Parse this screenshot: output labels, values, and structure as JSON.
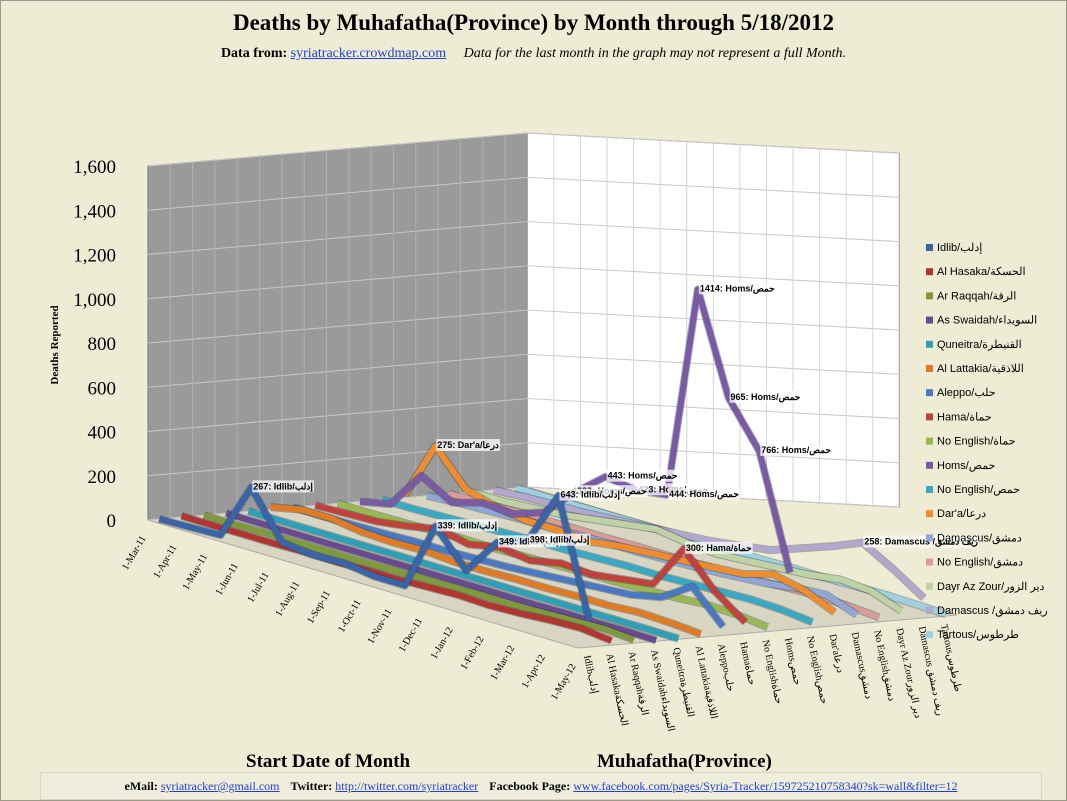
{
  "header": {
    "data_from_label": "Data from:",
    "source_link": "syriatracker.crowdmap.com",
    "note": "Data for the last month  in the graph may not represent  a full Month."
  },
  "footer": {
    "email_label": "eMail:",
    "email": "syriatracker@gmail.com",
    "twitter_label": "Twitter:",
    "twitter": "http://twitter.com/syriatracker",
    "facebook_label": "Facebook  Page:",
    "facebook": "www.facebook.com/pages/Syria-Tracker/159725210758340?sk=wall&filter=12"
  },
  "chart_data": {
    "type": "line",
    "title": "Deaths by Muhafatha(Province) by Month through 5/18/2012",
    "xlabel": "Start Date of Month",
    "ylabel": "Deaths Reported",
    "zlabel": "Muhafatha(Province)",
    "ylim": [
      0,
      1600
    ],
    "y_ticks": [
      "0",
      "200",
      "400",
      "600",
      "800",
      "1,000",
      "1,200",
      "1,400",
      "1,600"
    ],
    "grid": true,
    "legend_position": "right",
    "categories": [
      "1-Mar-11",
      "1-Apr-11",
      "1-May-11",
      "1-Jun-11",
      "1-Jul-11",
      "1-Aug-11",
      "1-Sep-11",
      "1-Oct-11",
      "1-Nov-11",
      "1-Dec-11",
      "1-Jan-12",
      "1-Feb-12",
      "1-Mar-12",
      "1-Apr-12",
      "1-May-12"
    ],
    "depth_labels": [
      "Idlibإدلب",
      "Al Hasakaالحسكة",
      "Ar Raqqahالرقة",
      "As Swaidahالسويداء",
      "Quneitraالقنيطرة",
      "Al Lattakiaاللاذقية",
      "Aleppoحلب",
      "Hamaحماة",
      "No Englishحماة",
      "Homsحمص",
      "No Englishحمص",
      "Dar'aدرعا",
      "Damascusدمشق",
      "No Englishدمشق",
      "Dayr Az Zourدير الزور",
      "Damascus ريف دمشق",
      "Tartousطرطوس"
    ],
    "series": [
      {
        "name": "Idlib/إدلب",
        "color": "#3a64a8",
        "values": [
          0,
          5,
          10,
          267,
          60,
          45,
          50,
          30,
          30,
          339,
          180,
          349,
          398,
          643,
          120
        ]
      },
      {
        "name": "Al Hasaka/الحسكة",
        "color": "#b3352f",
        "values": [
          5,
          5,
          5,
          5,
          8,
          6,
          10,
          10,
          15,
          20,
          15,
          20,
          30,
          35,
          20
        ]
      },
      {
        "name": "Ar Raqqah/الرقة",
        "color": "#7f9a3c",
        "values": [
          0,
          0,
          2,
          2,
          3,
          3,
          5,
          8,
          10,
          12,
          10,
          15,
          20,
          25,
          15
        ]
      },
      {
        "name": "As Swaidah/السويداء",
        "color": "#684b8f",
        "values": [
          0,
          0,
          0,
          0,
          1,
          1,
          2,
          2,
          3,
          3,
          3,
          5,
          5,
          6,
          4
        ]
      },
      {
        "name": "Quneitra/القنيطرة",
        "color": "#2f9fb8",
        "values": [
          0,
          0,
          0,
          0,
          0,
          1,
          1,
          1,
          2,
          2,
          3,
          3,
          4,
          4,
          3
        ]
      },
      {
        "name": "Al Lattakia/اللاذقية",
        "color": "#e07a25",
        "values": [
          10,
          40,
          40,
          20,
          15,
          20,
          10,
          10,
          15,
          15,
          20,
          20,
          30,
          25,
          15
        ]
      },
      {
        "name": "Aleppo/حلب",
        "color": "#4a78c3",
        "values": [
          0,
          0,
          2,
          5,
          10,
          10,
          15,
          20,
          30,
          40,
          50,
          60,
          90,
          180,
          40
        ]
      },
      {
        "name": "Hama/حماة",
        "color": "#c1423d",
        "values": [
          0,
          5,
          10,
          30,
          60,
          30,
          60,
          40,
          70,
          60,
          80,
          100,
          300,
          150,
          50
        ]
      },
      {
        "name": "No English/حماة",
        "color": "#9ab851",
        "values": [
          0,
          0,
          2,
          5,
          10,
          8,
          12,
          15,
          20,
          20,
          25,
          30,
          40,
          35,
          20
        ]
      },
      {
        "name": "Homs/حمص",
        "color": "#7a5aa4",
        "values": [
          0,
          30,
          200,
          120,
          160,
          150,
          200,
          332,
          443,
          423,
          444,
          1414,
          965,
          766,
          258
        ]
      },
      {
        "name": "No English/حمص",
        "color": "#37a9c4",
        "values": [
          0,
          0,
          5,
          10,
          15,
          20,
          20,
          25,
          30,
          30,
          35,
          40,
          45,
          40,
          25
        ]
      },
      {
        "name": "Dar'a/درعا",
        "color": "#ef8d2e",
        "values": [
          10,
          275,
          120,
          80,
          60,
          60,
          50,
          70,
          80,
          90,
          100,
          110,
          150,
          120,
          60
        ]
      },
      {
        "name": "Damascus/دمشق",
        "color": "#8ea7d6",
        "values": [
          0,
          10,
          15,
          20,
          25,
          25,
          30,
          30,
          35,
          40,
          50,
          60,
          80,
          90,
          40
        ]
      },
      {
        "name": "No English/دمشق",
        "color": "#d89b98",
        "values": [
          0,
          5,
          8,
          10,
          12,
          12,
          15,
          15,
          18,
          20,
          25,
          30,
          35,
          30,
          20
        ]
      },
      {
        "name": "Dayr Az Zour/دير الزور",
        "color": "#bfd2a3",
        "values": [
          0,
          0,
          10,
          20,
          40,
          60,
          80,
          60,
          50,
          60,
          70,
          80,
          100,
          90,
          40
        ]
      },
      {
        "name": "Damascus /ريف دمشق",
        "color": "#b2a7cc",
        "values": [
          0,
          10,
          15,
          20,
          30,
          40,
          50,
          60,
          80,
          100,
          150,
          200,
          258,
          180,
          90
        ]
      },
      {
        "name": "Tartous/طرطوس",
        "color": "#9fd0df",
        "values": [
          0,
          0,
          2,
          3,
          5,
          5,
          5,
          8,
          8,
          10,
          10,
          12,
          15,
          12,
          8
        ]
      }
    ],
    "annotations": [
      {
        "series": 9,
        "index": 11,
        "text": "1414: Homs/حمص"
      },
      {
        "series": 9,
        "index": 12,
        "text": "965: Homs/حمص"
      },
      {
        "series": 9,
        "index": 13,
        "text": "766: Homs/حمص"
      },
      {
        "series": 9,
        "index": 8,
        "text": "443: Homs/حمص"
      },
      {
        "series": 9,
        "index": 9,
        "text": "423: Homs/حمص"
      },
      {
        "series": 9,
        "index": 10,
        "text": "444: Homs/حمص"
      },
      {
        "series": 9,
        "index": 7,
        "text": "332: Homs/حمص"
      },
      {
        "series": 11,
        "index": 1,
        "text": "275: Dar'a/درعا"
      },
      {
        "series": 15,
        "index": 12,
        "text": "258: Damascus /ريف دمشق"
      },
      {
        "series": 7,
        "index": 12,
        "text": "300: Hama/حماة"
      },
      {
        "series": 0,
        "index": 3,
        "text": "267: Idlib/إدلب"
      },
      {
        "series": 0,
        "index": 9,
        "text": "339: Idlib/إدلب"
      },
      {
        "series": 0,
        "index": 11,
        "text": "349: Idlib/إدلب"
      },
      {
        "series": 0,
        "index": 12,
        "text": "398: Idlib/إدلب"
      },
      {
        "series": 0,
        "index": 13,
        "text": "643: Idlib/إدلب"
      }
    ]
  }
}
